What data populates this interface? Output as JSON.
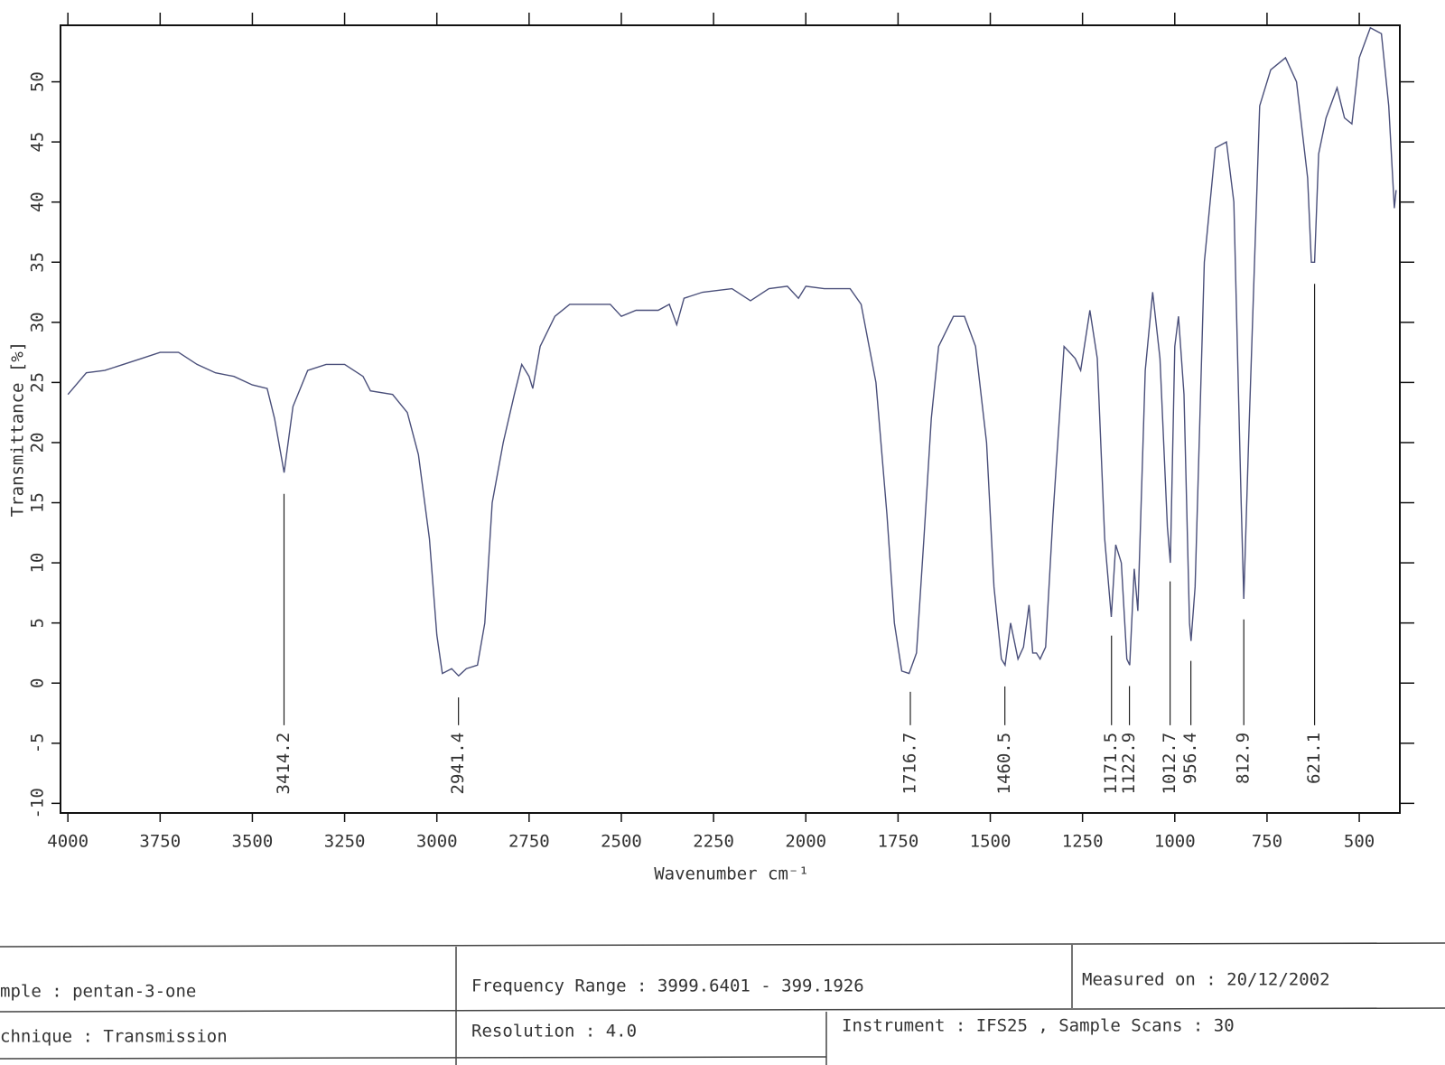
{
  "chart_data": {
    "type": "line",
    "xlabel": "Wavenumber cm⁻¹",
    "ylabel": "Transmittance [%]",
    "xlim": [
      4020,
      390
    ],
    "ylim": [
      -10.8,
      54.7
    ],
    "xticks": [
      4000,
      3750,
      3500,
      3250,
      3000,
      2750,
      2500,
      2250,
      2000,
      1750,
      1500,
      1250,
      1000,
      750,
      500
    ],
    "yticks": [
      -10,
      -5,
      0,
      5,
      10,
      15,
      20,
      25,
      30,
      35,
      40,
      45,
      50
    ],
    "color": "#4a4f7a",
    "x": [
      4000,
      3950,
      3900,
      3850,
      3800,
      3750,
      3700,
      3650,
      3600,
      3550,
      3500,
      3460,
      3440,
      3414,
      3390,
      3350,
      3300,
      3250,
      3200,
      3180,
      3120,
      3080,
      3050,
      3020,
      3000,
      2985,
      2960,
      2941,
      2920,
      2890,
      2870,
      2850,
      2820,
      2790,
      2770,
      2750,
      2740,
      2720,
      2680,
      2640,
      2580,
      2530,
      2500,
      2460,
      2400,
      2370,
      2350,
      2330,
      2280,
      2200,
      2150,
      2100,
      2050,
      2020,
      2000,
      1950,
      1880,
      1850,
      1810,
      1780,
      1760,
      1740,
      1720,
      1700,
      1680,
      1660,
      1640,
      1600,
      1570,
      1540,
      1510,
      1490,
      1470,
      1460,
      1445,
      1425,
      1410,
      1395,
      1385,
      1375,
      1365,
      1350,
      1330,
      1300,
      1270,
      1255,
      1230,
      1210,
      1190,
      1172,
      1160,
      1145,
      1130,
      1122,
      1110,
      1100,
      1080,
      1060,
      1040,
      1020,
      1012,
      1000,
      990,
      975,
      960,
      956,
      945,
      920,
      890,
      860,
      840,
      820,
      813,
      800,
      770,
      740,
      700,
      670,
      640,
      630,
      621,
      610,
      590,
      560,
      540,
      520,
      500,
      470,
      440,
      420,
      405,
      400
    ],
    "series": [
      {
        "values": [
          24,
          25.8,
          26,
          26.5,
          27,
          27.5,
          27.5,
          26.5,
          25.8,
          25.5,
          24.8,
          24.5,
          22,
          17.5,
          23,
          26,
          26.5,
          26.5,
          25.5,
          24.3,
          24,
          22.5,
          19,
          12,
          4,
          0.8,
          1.2,
          0.6,
          1.2,
          1.5,
          5,
          15,
          20,
          24,
          26.5,
          25.5,
          24.5,
          28,
          30.5,
          31.5,
          31.5,
          31.5,
          30.5,
          31,
          31,
          31.5,
          29.8,
          32,
          32.5,
          32.8,
          31.8,
          32.8,
          33,
          32,
          33,
          32.8,
          32.8,
          31.5,
          25,
          14,
          5,
          1,
          0.8,
          2.5,
          12,
          22,
          28,
          30.5,
          30.5,
          28,
          20,
          8,
          2,
          1.5,
          5,
          2,
          3,
          6.5,
          2.5,
          2.5,
          2,
          3,
          14,
          28,
          27,
          26,
          31,
          27,
          12,
          5.5,
          11.5,
          10,
          2,
          1.5,
          9.5,
          6,
          26,
          32.5,
          27,
          13,
          10,
          28,
          30.5,
          24,
          5,
          3.5,
          8,
          35,
          44.5,
          45,
          40,
          15,
          7,
          20,
          48,
          51,
          52,
          50,
          42,
          35,
          35,
          44,
          47,
          49.5,
          47,
          46.5,
          52,
          54.5,
          54,
          48,
          39.5,
          41
        ]
      }
    ],
    "annotations": [
      3414.2,
      2941.4,
      1716.7,
      1460.5,
      1171.5,
      1122.9,
      1012.7,
      956.4,
      812.9,
      621.1
    ]
  },
  "info_table": {
    "sample": "mple : pentan-3-one",
    "frequency_range": "Frequency Range : 3999.6401 - 399.1926",
    "measured_on": "Measured on : 20/12/2002",
    "technique": "chnique : Transmission",
    "resolution": "Resolution : 4.0",
    "instrument": "Instrument :  IFS25  , Sample Scans : 30"
  }
}
